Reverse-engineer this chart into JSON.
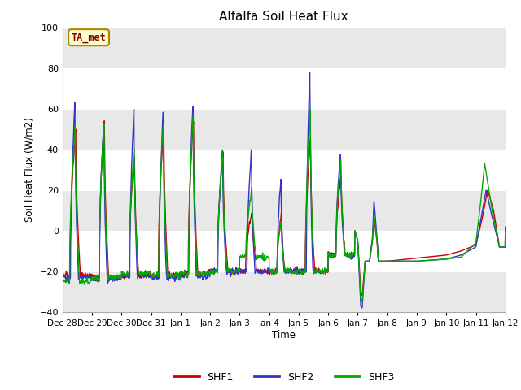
{
  "title": "Alfalfa Soil Heat Flux",
  "ylabel": "Soil Heat Flux (W/m2)",
  "xlabel": "Time",
  "ylim": [
    -40,
    100
  ],
  "yticks": [
    -40,
    -20,
    0,
    20,
    40,
    60,
    80,
    100
  ],
  "legend_labels": [
    "SHF1",
    "SHF2",
    "SHF3"
  ],
  "legend_colors": [
    "#cc0000",
    "#3333cc",
    "#00aa00"
  ],
  "annotation_text": "TA_met",
  "annotation_color": "#880000",
  "annotation_bg": "#ffffcc",
  "annotation_border": "#aa8800",
  "fig_bg": "#ffffff",
  "plot_bg": "#ffffff",
  "band_color": "#e8e8e8",
  "xtick_labels": [
    "Dec 28",
    "Dec 29",
    "Dec 30",
    "Dec 31",
    "Jan 1",
    "Jan 2",
    "Jan 3",
    "Jan 4",
    "Jan 5",
    "Jan 6",
    "Jan 7",
    "Jan 8",
    "Jan 9",
    "Jan 10",
    "Jan 11",
    "Jan 12"
  ],
  "line_width": 1.0,
  "n_points": 2016
}
